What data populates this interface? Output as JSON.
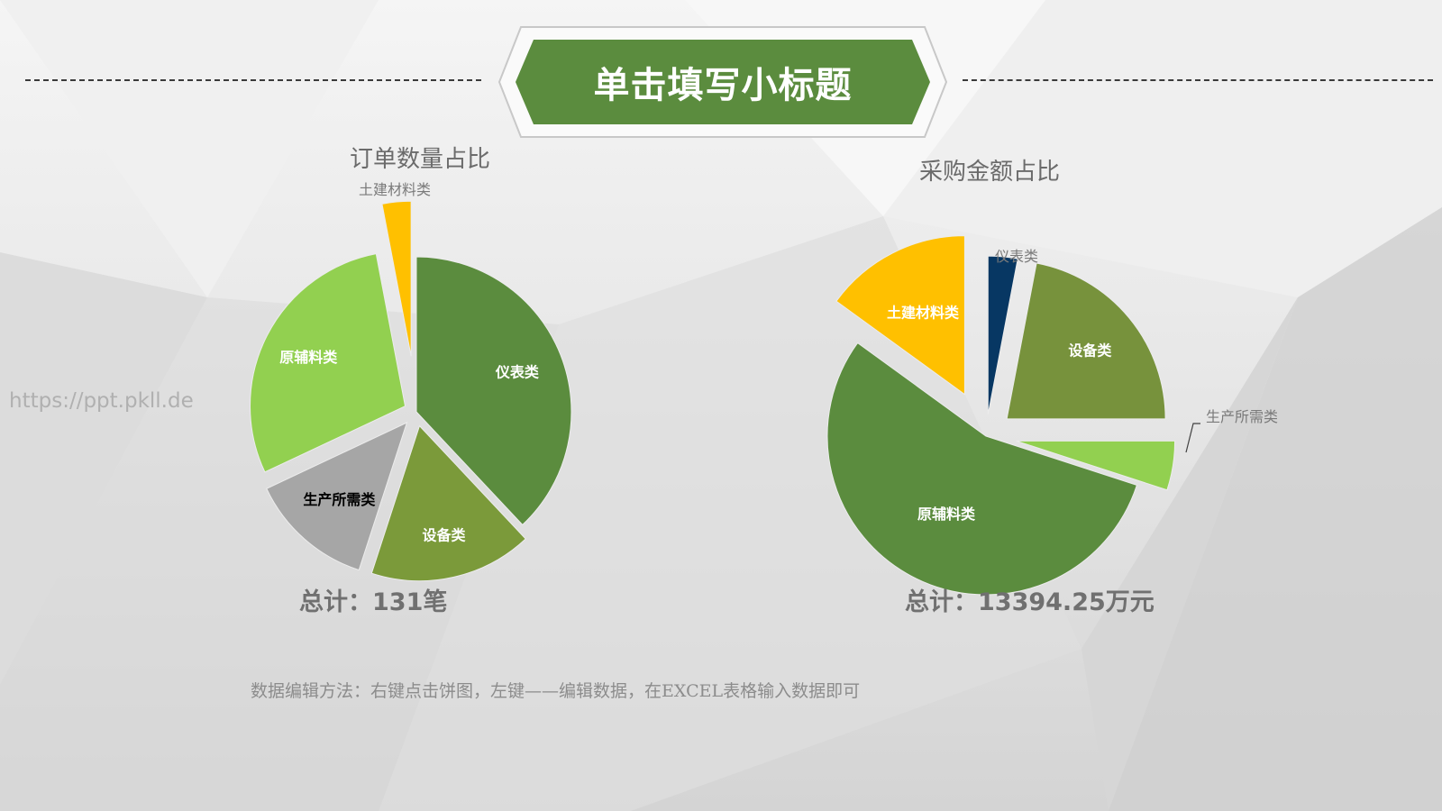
{
  "header": {
    "title": "单击填写小标题",
    "accent_color": "#5b8c3e"
  },
  "watermark": "https://ppt.pkll.de",
  "note": "数据编辑方法：右键点击饼图，左键——编辑数据，在EXCEL表格输入数据即可",
  "chart_data": [
    {
      "type": "pie",
      "title": "订单数量占比",
      "total_label": "总计：131笔",
      "categories": [
        "仪表类",
        "设备类",
        "生产所需类",
        "原辅料类",
        "土建材料类"
      ],
      "values": [
        38,
        17,
        13,
        29,
        3
      ],
      "unit": "%",
      "colors": [
        "#5b8c3e",
        "#7b9a3a",
        "#a6a6a6",
        "#92d050",
        "#ffc000"
      ],
      "label_colors": [
        "#ffffff",
        "#ffffff",
        "#000000",
        "#ffffff",
        "#595959"
      ],
      "exploded": [
        false,
        true,
        true,
        true,
        true
      ]
    },
    {
      "type": "pie",
      "title": "采购金额占比",
      "total_label": "总计：13394.25万元",
      "categories": [
        "仪表类",
        "设备类",
        "生产所需类",
        "原辅料类",
        "土建材料类"
      ],
      "values": [
        3,
        22,
        5,
        55,
        15
      ],
      "unit": "%",
      "colors": [
        "#073763",
        "#77923c",
        "#92d050",
        "#5b8c3e",
        "#ffc000"
      ],
      "label_colors": [
        "#7a7a7a",
        "#ffffff",
        "#7a7a7a",
        "#ffffff",
        "#ffffff"
      ],
      "exploded": [
        true,
        true,
        true,
        false,
        true
      ]
    }
  ]
}
